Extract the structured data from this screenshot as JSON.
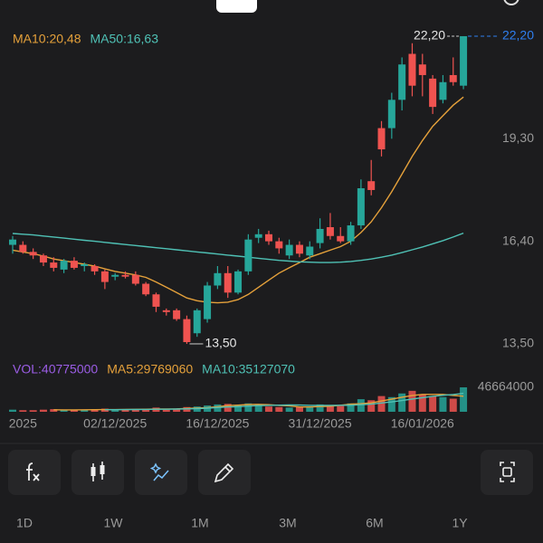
{
  "chart_data": [
    {
      "type": "candlestick",
      "open": [
        16.3,
        16.3,
        16.1,
        16.0,
        15.8,
        15.6,
        15.85,
        15.7,
        15.7,
        15.55,
        15.4,
        15.45,
        15.45,
        15.2,
        14.9,
        14.45,
        14.45,
        14.2,
        13.8,
        14.2,
        15.15,
        15.5,
        14.95,
        15.55,
        16.5,
        16.6,
        16.4,
        16.0,
        16.3,
        16.0,
        16.35,
        16.8,
        16.55,
        16.4,
        16.85,
        18.1,
        19.6,
        19.6,
        20.4,
        21.7,
        21.4,
        21.0,
        20.4,
        21.1,
        20.8
      ],
      "high": [
        16.55,
        16.4,
        16.2,
        16.05,
        15.95,
        15.9,
        15.95,
        15.8,
        15.75,
        15.6,
        15.5,
        15.55,
        15.55,
        15.25,
        14.95,
        14.5,
        14.5,
        14.3,
        14.5,
        15.25,
        15.7,
        15.7,
        15.6,
        16.6,
        16.75,
        16.7,
        16.5,
        16.45,
        16.4,
        16.4,
        17.05,
        17.2,
        16.8,
        16.95,
        18.15,
        18.7,
        19.8,
        20.6,
        21.6,
        22.0,
        21.7,
        21.1,
        21.1,
        21.6,
        22.2
      ],
      "low": [
        16.05,
        16.05,
        15.9,
        15.7,
        15.55,
        15.5,
        15.6,
        15.55,
        15.45,
        15.05,
        15.3,
        15.35,
        15.15,
        14.85,
        14.4,
        14.3,
        14.15,
        13.5,
        13.7,
        14.1,
        15.05,
        14.8,
        14.9,
        15.45,
        16.35,
        16.3,
        16.05,
        15.9,
        15.95,
        15.9,
        16.2,
        16.45,
        16.35,
        16.3,
        16.75,
        17.7,
        18.8,
        19.3,
        20.1,
        20.5,
        20.5,
        20.0,
        20.3,
        20.8,
        20.7
      ],
      "close": [
        16.45,
        16.1,
        16.0,
        15.8,
        15.65,
        15.85,
        15.65,
        15.75,
        15.55,
        15.25,
        15.45,
        15.4,
        15.2,
        14.9,
        14.55,
        14.4,
        14.2,
        13.55,
        14.45,
        15.15,
        15.5,
        14.95,
        15.55,
        16.45,
        16.6,
        16.4,
        16.2,
        16.3,
        16.05,
        16.25,
        16.75,
        16.55,
        16.4,
        16.85,
        17.9,
        17.85,
        19.0,
        20.4,
        21.4,
        20.8,
        21.1,
        20.2,
        20.9,
        20.9,
        22.2
      ],
      "up_color": "#26a69a",
      "down_color": "#ef5350",
      "ylim": [
        13.1,
        22.45
      ],
      "yticks": [
        {
          "value": 13.5,
          "label": "13,50"
        },
        {
          "value": 16.4,
          "label": "16,40"
        },
        {
          "value": 19.3,
          "label": "19,30"
        }
      ],
      "last_price": {
        "value": 22.2,
        "label": "22,20"
      },
      "high_marker": {
        "value": 22.2,
        "label": "22,20"
      },
      "low_marker": {
        "value": 13.5,
        "label": "13,50"
      },
      "series": [
        {
          "name": "MA10:20,48",
          "color": "#e5a13b",
          "values": [
            16.15,
            16.1,
            16.05,
            15.98,
            15.9,
            15.85,
            15.8,
            15.75,
            15.7,
            15.62,
            15.55,
            15.5,
            15.45,
            15.38,
            15.25,
            15.1,
            14.95,
            14.8,
            14.72,
            14.68,
            14.66,
            14.68,
            14.75,
            14.9,
            15.1,
            15.3,
            15.5,
            15.65,
            15.8,
            15.95,
            16.05,
            16.15,
            16.25,
            16.4,
            16.65,
            16.95,
            17.35,
            17.8,
            18.3,
            18.8,
            19.25,
            19.65,
            19.95,
            20.25,
            20.48
          ]
        },
        {
          "name": "MA50:16,63",
          "color": "#4fc1b5",
          "values": [
            16.62,
            16.6,
            16.58,
            16.55,
            16.52,
            16.49,
            16.46,
            16.43,
            16.4,
            16.37,
            16.34,
            16.31,
            16.28,
            16.25,
            16.22,
            16.19,
            16.16,
            16.13,
            16.1,
            16.07,
            16.04,
            16.01,
            15.98,
            15.95,
            15.92,
            15.89,
            15.86,
            15.84,
            15.82,
            15.81,
            15.8,
            15.8,
            15.81,
            15.83,
            15.86,
            15.9,
            15.95,
            16.01,
            16.08,
            16.16,
            16.24,
            16.33,
            16.42,
            16.52,
            16.63
          ]
        }
      ]
    },
    {
      "type": "bar",
      "label": "VOL:40775000",
      "label_color": "#9b5de5",
      "categories": [
        null,
        "2025",
        null,
        null,
        null,
        null,
        null,
        null,
        null,
        null,
        "02/12/2025",
        null,
        null,
        null,
        null,
        null,
        null,
        null,
        null,
        null,
        "16/12/2025",
        null,
        null,
        null,
        null,
        null,
        null,
        null,
        null,
        null,
        "31/12/2025",
        null,
        null,
        null,
        null,
        null,
        null,
        null,
        null,
        null,
        "16/01/2026",
        null,
        null,
        null,
        null
      ],
      "values": [
        4000000,
        3000000,
        3000000,
        4000000,
        5000000,
        3000000,
        3000000,
        4000000,
        5000000,
        6000000,
        3000000,
        4000000,
        5000000,
        6000000,
        8000000,
        4000000,
        5000000,
        9000000,
        10000000,
        12000000,
        14000000,
        15000000,
        12000000,
        16000000,
        14000000,
        10000000,
        9000000,
        8000000,
        9000000,
        10000000,
        14000000,
        12000000,
        11000000,
        16000000,
        24000000,
        22000000,
        30000000,
        28000000,
        35000000,
        40000000,
        33000000,
        30000000,
        28000000,
        25000000,
        46664000
      ],
      "ylim": [
        0,
        46664000
      ],
      "yticks": [
        46664000
      ],
      "series": [
        {
          "name": "MA5:29769060",
          "color": "#e5a13b",
          "values": [
            null,
            null,
            null,
            null,
            3800000,
            3600000,
            3600000,
            3800000,
            4000000,
            4200000,
            4200000,
            4400000,
            4600000,
            4800000,
            5200000,
            5400000,
            5600000,
            6400000,
            7200000,
            8000000,
            9600000,
            11800000,
            12600000,
            13800000,
            14200000,
            13400000,
            12200000,
            11400000,
            9200000,
            9200000,
            10000000,
            10600000,
            12400000,
            14600000,
            15400000,
            17000000,
            20600000,
            24000000,
            27800000,
            31000000,
            33200000,
            33200000,
            33200000,
            31200000,
            29769060
          ]
        },
        {
          "name": "MA10:35127070",
          "color": "#4fc1b5",
          "values": [
            null,
            null,
            null,
            null,
            null,
            null,
            null,
            null,
            null,
            4000000,
            4000000,
            4100000,
            4300000,
            4500000,
            4800000,
            4900000,
            5100000,
            5600000,
            6100000,
            6900000,
            8100000,
            9200000,
            9900000,
            10900000,
            11800000,
            12200000,
            12600000,
            12900000,
            12800000,
            12200000,
            12200000,
            12200000,
            12400000,
            12400000,
            13500000,
            14600000,
            16800000,
            18800000,
            21400000,
            24400000,
            27000000,
            29500000,
            31500000,
            33000000,
            35127070
          ]
        }
      ]
    }
  ],
  "periods": [
    "1D",
    "1W",
    "1M",
    "3M",
    "6M",
    "1Y"
  ]
}
